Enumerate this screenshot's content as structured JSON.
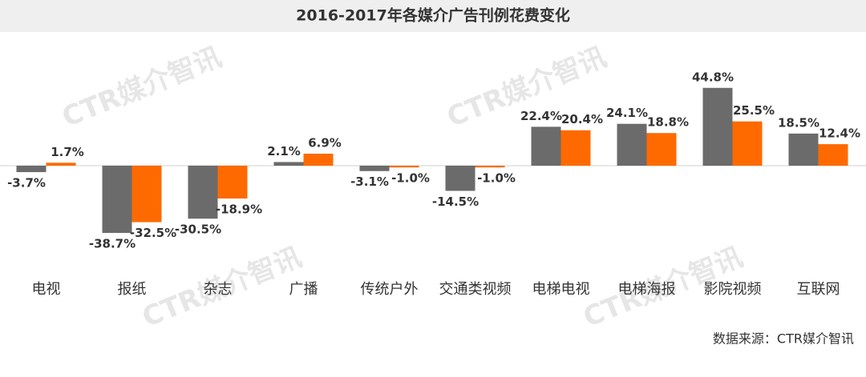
{
  "chart_data": {
    "type": "bar",
    "title": "2016-2017年各媒介广告刊例花费变化",
    "categories": [
      "电视",
      "报纸",
      "杂志",
      "广播",
      "传统户外",
      "交通类视频",
      "电梯电视",
      "电梯海报",
      "影院视频",
      "互联网"
    ],
    "series": [
      {
        "color": "#6b6b6b",
        "values": [
          -3.7,
          -38.7,
          -30.5,
          2.1,
          -3.1,
          -14.5,
          22.4,
          24.1,
          44.8,
          18.5
        ],
        "value_labels": [
          "-3.7%",
          "-38.7%",
          "-30.5%",
          "2.1%",
          "-3.1%",
          "-14.5%",
          "22.4%",
          "24.1%",
          "44.8%",
          "18.5%"
        ]
      },
      {
        "color": "#ff6a00",
        "values": [
          1.7,
          -32.5,
          -18.9,
          6.9,
          -1.0,
          -1.0,
          20.4,
          18.8,
          25.5,
          12.4
        ],
        "value_labels": [
          "1.7%",
          "-32.5%",
          "-18.9%",
          "6.9%",
          "-1.0%",
          "-1.0%",
          "20.4%",
          "18.8%",
          "25.5%",
          "12.4%"
        ]
      }
    ],
    "watermark": "CTR媒介智讯",
    "source": "数据来源：CTR媒介智讯"
  }
}
